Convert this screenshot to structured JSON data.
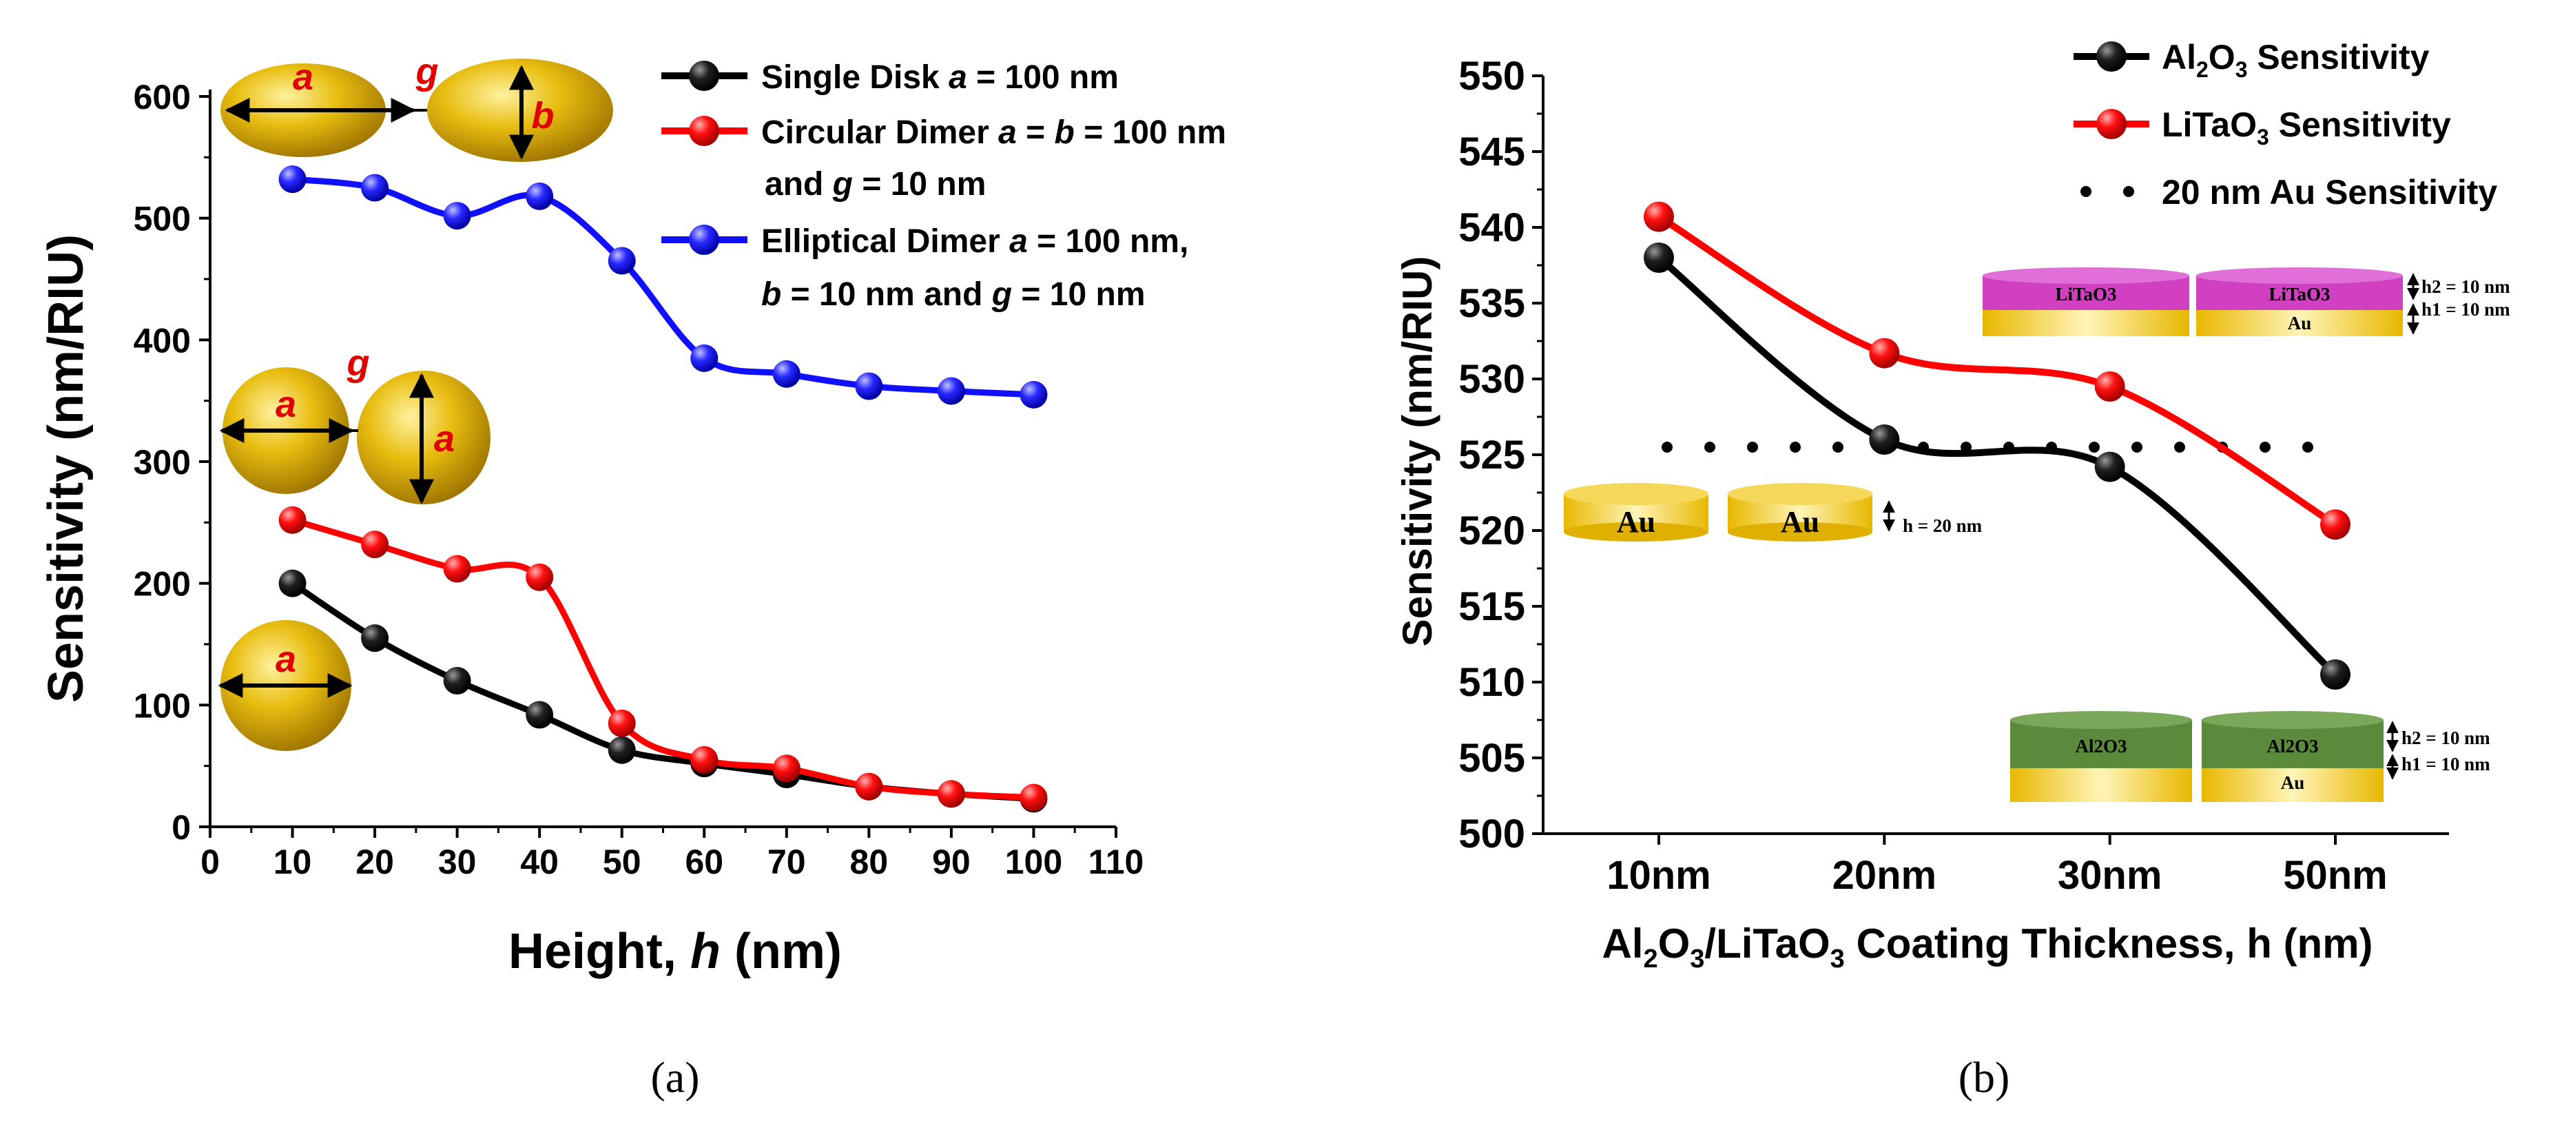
{
  "colors": {
    "black": "#000000",
    "red": "#ff0000",
    "blue": "#1010ff",
    "gold": "#e8bd10",
    "pink": "#d040c0",
    "green": "#5a8a3a"
  },
  "chart_data": [
    {
      "panel": "(a)",
      "type": "line",
      "x_title_prefix": "Height, ",
      "x_title_var": "h",
      "x_title_suffix": " (nm)",
      "ylabel": "Sensitivity (nm/RIU)",
      "xlim": [
        0,
        110
      ],
      "ylim": [
        0,
        600
      ],
      "x_ticks": [
        0,
        10,
        20,
        30,
        40,
        50,
        60,
        70,
        80,
        90,
        100,
        110
      ],
      "y_ticks": [
        0,
        100,
        200,
        300,
        400,
        500,
        600
      ],
      "x": [
        10,
        20,
        30,
        40,
        50,
        60,
        70,
        80,
        90,
        100
      ],
      "series": [
        {
          "name": "Single Disk a = 100 nm",
          "legend_parts": [
            "Single Disk ",
            "a",
            " = 100 nm"
          ],
          "color": "#000000",
          "values": [
            200,
            155,
            120,
            92,
            63,
            52,
            43,
            33,
            27,
            23
          ]
        },
        {
          "name": "Circular Dimer a = b = 100 nm and g = 10 nm",
          "legend_parts": [
            "Circular Dimer ",
            "a",
            " = ",
            "b",
            " = 100 nm"
          ],
          "legend_line2_parts": [
            "and ",
            "g",
            " = 10 nm"
          ],
          "color": "#ff0000",
          "values": [
            252,
            232,
            212,
            205,
            85,
            55,
            48,
            33,
            27,
            24
          ]
        },
        {
          "name": "Elliptical Dimer a = 100 nm, b = 10 nm and g = 10 nm",
          "legend_parts": [
            "Elliptical Dimer ",
            "a",
            " = 100 nm,"
          ],
          "legend_line2_parts": [
            "b",
            " = 10 nm and ",
            "g",
            " = 10 nm"
          ],
          "color": "#1010ff",
          "values": [
            532,
            525,
            502,
            518,
            465,
            385,
            372,
            362,
            358,
            355
          ]
        }
      ],
      "annotations": {
        "a": "a",
        "b": "b",
        "g": "g"
      }
    },
    {
      "panel": "(b)",
      "type": "line",
      "ylabel": "Sensitivity (nm/RIU)",
      "x_title_parts": [
        "Al",
        "2",
        "O",
        "3",
        "/LiTaO",
        "3",
        " Coating Thickness, h (nm)"
      ],
      "categories": [
        "10nm",
        "20nm",
        "30nm",
        "50nm"
      ],
      "ylim": [
        500,
        550
      ],
      "y_ticks": [
        500,
        505,
        510,
        515,
        520,
        525,
        530,
        535,
        540,
        545,
        550
      ],
      "series": [
        {
          "name": "Al2O3 Sensitivity",
          "legend_parts": [
            "Al",
            "2",
            "O",
            "3",
            " Sensitivity"
          ],
          "color": "#000000",
          "values": [
            538,
            526,
            524.2,
            510.5
          ]
        },
        {
          "name": "LiTaO3 Sensitivity",
          "legend_parts": [
            "LiTaO",
            "3",
            " Sensitivity"
          ],
          "color": "#ff0000",
          "values": [
            540.7,
            531.7,
            529.5,
            520.4
          ]
        },
        {
          "name": "20 nm Au Sensitivity",
          "legend_parts": [
            "20 nm Au Sensitivity"
          ],
          "color": "#000000",
          "style": "dotted",
          "value": 525.5
        }
      ],
      "insets": {
        "au": {
          "disk1": "Au",
          "disk2": "Au",
          "dim": "h = 20 nm"
        },
        "litao": {
          "top1": "LiTaO3",
          "top2": "LiTaO3",
          "bottom": "Au",
          "dim_h2": "h2 = 10 nm",
          "dim_h1": "h1 = 10 nm"
        },
        "al2o3": {
          "top1": "Al2O3",
          "top2": "Al2O3",
          "bottom": "Au",
          "dim_h2": "h2 = 10 nm",
          "dim_h1": "h1 = 10 nm"
        }
      }
    }
  ]
}
